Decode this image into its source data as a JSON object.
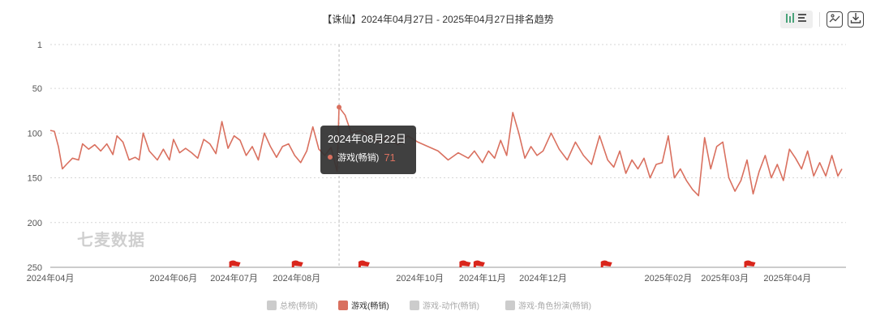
{
  "chart_data": {
    "type": "line",
    "title": "【诛仙】2024年04月27日 - 2025年04月27日排名趋势",
    "y_axis": {
      "inverted": true,
      "range": [
        1,
        250
      ],
      "ticks": [
        "1",
        "50",
        "100",
        "150",
        "200",
        "250"
      ]
    },
    "x_axis": {
      "range": [
        "2024-04-01",
        "2025-04-30"
      ],
      "ticks": [
        {
          "label": "2024年04月",
          "date": "2024-04-01"
        },
        {
          "label": "2024年06月",
          "date": "2024-06-01"
        },
        {
          "label": "2024年07月",
          "date": "2024-07-01"
        },
        {
          "label": "2024年08月",
          "date": "2024-08-01"
        },
        {
          "label": "2024年10月",
          "date": "2024-10-01"
        },
        {
          "label": "2024年11月",
          "date": "2024-11-01"
        },
        {
          "label": "2024年12月",
          "date": "2024-12-01"
        },
        {
          "label": "2025年02月",
          "date": "2025-02-01"
        },
        {
          "label": "2025年03月",
          "date": "2025-03-01"
        },
        {
          "label": "2025年04月",
          "date": "2025-04-01"
        }
      ]
    },
    "grid": "horizontal-dotted",
    "series": [
      {
        "name": "游戏(畅销)",
        "color": "#d9705f",
        "points": [
          [
            "2024-04-01",
            97
          ],
          [
            "2024-04-03",
            98
          ],
          [
            "2024-04-05",
            115
          ],
          [
            "2024-04-07",
            140
          ],
          [
            "2024-04-09",
            135
          ],
          [
            "2024-04-12",
            128
          ],
          [
            "2024-04-15",
            130
          ],
          [
            "2024-04-17",
            112
          ],
          [
            "2024-04-20",
            118
          ],
          [
            "2024-04-23",
            113
          ],
          [
            "2024-04-26",
            120
          ],
          [
            "2024-04-29",
            112
          ],
          [
            "2024-05-02",
            124
          ],
          [
            "2024-05-04",
            103
          ],
          [
            "2024-05-07",
            110
          ],
          [
            "2024-05-10",
            130
          ],
          [
            "2024-05-13",
            127
          ],
          [
            "2024-05-15",
            130
          ],
          [
            "2024-05-17",
            100
          ],
          [
            "2024-05-20",
            120
          ],
          [
            "2024-05-24",
            130
          ],
          [
            "2024-05-27",
            118
          ],
          [
            "2024-05-30",
            130
          ],
          [
            "2024-06-01",
            107
          ],
          [
            "2024-06-04",
            122
          ],
          [
            "2024-06-07",
            117
          ],
          [
            "2024-06-10",
            122
          ],
          [
            "2024-06-13",
            128
          ],
          [
            "2024-06-16",
            107
          ],
          [
            "2024-06-19",
            112
          ],
          [
            "2024-06-22",
            123
          ],
          [
            "2024-06-25",
            87
          ],
          [
            "2024-06-28",
            117
          ],
          [
            "2024-07-01",
            103
          ],
          [
            "2024-07-04",
            108
          ],
          [
            "2024-07-07",
            125
          ],
          [
            "2024-07-10",
            115
          ],
          [
            "2024-07-13",
            130
          ],
          [
            "2024-07-16",
            100
          ],
          [
            "2024-07-19",
            115
          ],
          [
            "2024-07-22",
            127
          ],
          [
            "2024-07-25",
            115
          ],
          [
            "2024-07-28",
            112
          ],
          [
            "2024-07-31",
            125
          ],
          [
            "2024-08-03",
            133
          ],
          [
            "2024-08-06",
            120
          ],
          [
            "2024-08-09",
            93
          ],
          [
            "2024-08-12",
            118
          ],
          [
            "2024-08-15",
            125
          ],
          [
            "2024-08-18",
            116
          ],
          [
            "2024-08-21",
            143
          ],
          [
            "2024-08-22",
            71
          ],
          [
            "2024-08-25",
            80
          ],
          [
            "2024-08-28",
            100
          ],
          [
            "2024-09-02",
            97
          ],
          [
            "2024-09-06",
            103
          ],
          [
            "2024-09-10",
            110
          ],
          [
            "2024-09-15",
            105
          ],
          [
            "2024-09-20",
            113
          ],
          [
            "2024-09-25",
            103
          ],
          [
            "2024-09-30",
            110
          ],
          [
            "2024-10-05",
            115
          ],
          [
            "2024-10-10",
            120
          ],
          [
            "2024-10-15",
            130
          ],
          [
            "2024-10-20",
            122
          ],
          [
            "2024-10-25",
            128
          ],
          [
            "2024-10-28",
            120
          ],
          [
            "2024-11-01",
            133
          ],
          [
            "2024-11-04",
            120
          ],
          [
            "2024-11-07",
            128
          ],
          [
            "2024-11-10",
            108
          ],
          [
            "2024-11-13",
            125
          ],
          [
            "2024-11-16",
            77
          ],
          [
            "2024-11-19",
            100
          ],
          [
            "2024-11-22",
            128
          ],
          [
            "2024-11-25",
            115
          ],
          [
            "2024-11-28",
            125
          ],
          [
            "2024-12-01",
            120
          ],
          [
            "2024-12-05",
            100
          ],
          [
            "2024-12-09",
            118
          ],
          [
            "2024-12-13",
            130
          ],
          [
            "2024-12-17",
            110
          ],
          [
            "2024-12-21",
            125
          ],
          [
            "2024-12-25",
            135
          ],
          [
            "2024-12-29",
            103
          ],
          [
            "2025-01-02",
            130
          ],
          [
            "2025-01-05",
            138
          ],
          [
            "2025-01-08",
            120
          ],
          [
            "2025-01-11",
            145
          ],
          [
            "2025-01-14",
            130
          ],
          [
            "2025-01-17",
            140
          ],
          [
            "2025-01-20",
            128
          ],
          [
            "2025-01-23",
            150
          ],
          [
            "2025-01-26",
            135
          ],
          [
            "2025-01-29",
            133
          ],
          [
            "2025-02-01",
            103
          ],
          [
            "2025-02-04",
            150
          ],
          [
            "2025-02-07",
            140
          ],
          [
            "2025-02-10",
            153
          ],
          [
            "2025-02-13",
            163
          ],
          [
            "2025-02-16",
            170
          ],
          [
            "2025-02-19",
            105
          ],
          [
            "2025-02-22",
            140
          ],
          [
            "2025-02-25",
            115
          ],
          [
            "2025-02-28",
            110
          ],
          [
            "2025-03-03",
            150
          ],
          [
            "2025-03-06",
            165
          ],
          [
            "2025-03-09",
            153
          ],
          [
            "2025-03-12",
            130
          ],
          [
            "2025-03-15",
            168
          ],
          [
            "2025-03-18",
            143
          ],
          [
            "2025-03-21",
            125
          ],
          [
            "2025-03-24",
            150
          ],
          [
            "2025-03-27",
            135
          ],
          [
            "2025-03-30",
            153
          ],
          [
            "2025-04-02",
            118
          ],
          [
            "2025-04-05",
            128
          ],
          [
            "2025-04-08",
            140
          ],
          [
            "2025-04-11",
            120
          ],
          [
            "2025-04-14",
            148
          ],
          [
            "2025-04-17",
            133
          ],
          [
            "2025-04-20",
            148
          ],
          [
            "2025-04-23",
            125
          ],
          [
            "2025-04-26",
            148
          ],
          [
            "2025-04-28",
            140
          ]
        ]
      }
    ],
    "event_flags": [
      "2024-07-01",
      "2024-08-01",
      "2024-09-03",
      "2024-10-23",
      "2024-10-30",
      "2025-01-01",
      "2025-03-13"
    ],
    "tooltip": {
      "date": "2024年08月22日",
      "series": "游戏(畅销)",
      "value": "71",
      "at": "2024-08-22"
    },
    "legend": {
      "placement": "bottom-center",
      "items": [
        {
          "label": "总榜(畅销)",
          "active": false
        },
        {
          "label": "游戏(畅销)",
          "active": true
        },
        {
          "label": "游戏-动作(畅销)",
          "active": false
        },
        {
          "label": "游戏-角色扮演(畅销)",
          "active": false
        }
      ]
    }
  },
  "watermark": "七麦数据",
  "colors": {
    "line": "#d9705f",
    "flag": "#d9261c",
    "legend_inactive": "#cccccc",
    "grid": "#d6d6d6"
  },
  "toolbar": [
    "chart-type-toggle-icon",
    "save-image-icon",
    "download-icon"
  ]
}
